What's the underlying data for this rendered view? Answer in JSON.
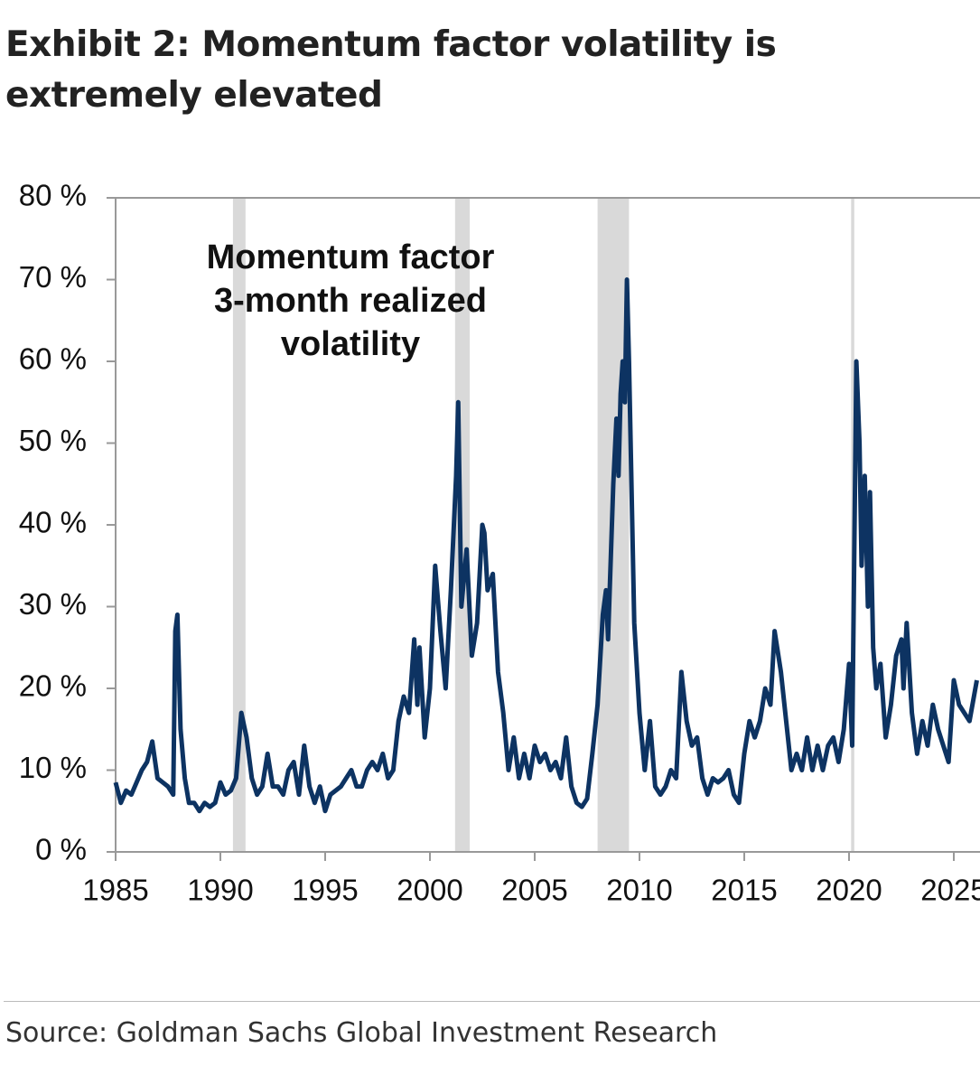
{
  "chart_data": {
    "type": "line",
    "title": "Exhibit 2: Momentum factor volatility is extremely elevated",
    "annotation": [
      "Momentum factor",
      "3-month realized",
      "volatility"
    ],
    "source": "Source: Goldman Sachs Global Investment Research",
    "x": [
      1985.0,
      1985.25,
      1985.5,
      1985.75,
      1986.0,
      1986.25,
      1986.5,
      1986.75,
      1987.0,
      1987.25,
      1987.5,
      1987.75,
      1987.85,
      1987.95,
      1988.1,
      1988.3,
      1988.5,
      1988.75,
      1989.0,
      1989.25,
      1989.5,
      1989.75,
      1990.0,
      1990.25,
      1990.5,
      1990.75,
      1991.0,
      1991.25,
      1991.5,
      1991.75,
      1992.0,
      1992.25,
      1992.5,
      1992.75,
      1993.0,
      1993.25,
      1993.5,
      1993.75,
      1994.0,
      1994.25,
      1994.5,
      1994.75,
      1995.0,
      1995.25,
      1995.5,
      1995.75,
      1996.0,
      1996.25,
      1996.5,
      1996.75,
      1997.0,
      1997.25,
      1997.5,
      1997.75,
      1998.0,
      1998.25,
      1998.5,
      1998.75,
      1999.0,
      1999.25,
      1999.4,
      1999.5,
      1999.75,
      2000.0,
      2000.25,
      2000.5,
      2000.75,
      2001.0,
      2001.25,
      2001.35,
      2001.5,
      2001.75,
      2002.0,
      2002.25,
      2002.5,
      2002.6,
      2002.75,
      2003.0,
      2003.25,
      2003.5,
      2003.75,
      2004.0,
      2004.25,
      2004.5,
      2004.75,
      2005.0,
      2005.25,
      2005.5,
      2005.75,
      2006.0,
      2006.25,
      2006.5,
      2006.75,
      2007.0,
      2007.25,
      2007.5,
      2007.75,
      2008.0,
      2008.25,
      2008.4,
      2008.5,
      2008.75,
      2008.9,
      2009.0,
      2009.1,
      2009.2,
      2009.3,
      2009.4,
      2009.5,
      2009.75,
      2010.0,
      2010.25,
      2010.5,
      2010.75,
      2011.0,
      2011.25,
      2011.5,
      2011.75,
      2012.0,
      2012.25,
      2012.5,
      2012.75,
      2013.0,
      2013.25,
      2013.5,
      2013.75,
      2014.0,
      2014.25,
      2014.5,
      2014.75,
      2015.0,
      2015.25,
      2015.5,
      2015.75,
      2016.0,
      2016.25,
      2016.45,
      2016.75,
      2017.0,
      2017.25,
      2017.5,
      2017.75,
      2018.0,
      2018.25,
      2018.5,
      2018.75,
      2019.0,
      2019.25,
      2019.5,
      2019.75,
      2020.0,
      2020.15,
      2020.35,
      2020.5,
      2020.6,
      2020.75,
      2020.9,
      2021.0,
      2021.15,
      2021.3,
      2021.5,
      2021.75,
      2022.0,
      2022.25,
      2022.5,
      2022.6,
      2022.75,
      2023.0,
      2023.25,
      2023.5,
      2023.75,
      2024.0,
      2024.25,
      2024.5,
      2024.75,
      2025.0,
      2025.25,
      2025.5,
      2025.75,
      2026.1
    ],
    "series": [
      {
        "color": "#0d3362",
        "values": [
          8.5,
          6,
          7.5,
          7,
          8.5,
          10,
          11,
          13.5,
          9,
          8.5,
          8,
          7,
          27,
          29,
          15,
          9,
          6,
          6,
          5,
          6,
          5.5,
          6,
          8.5,
          7,
          7.5,
          9,
          17,
          14,
          9,
          7,
          8,
          12,
          8,
          8,
          7,
          10,
          11,
          7,
          13,
          8,
          6,
          8,
          5,
          7,
          7.5,
          8,
          9,
          10,
          8,
          8,
          10,
          11,
          10,
          12,
          9,
          10,
          16,
          19,
          17,
          26,
          18,
          25,
          14,
          20,
          35,
          27,
          20,
          32,
          46,
          55,
          30,
          37,
          24,
          28,
          40,
          39,
          32,
          34,
          22,
          17,
          10,
          14,
          9,
          12,
          9,
          13,
          11,
          12,
          10,
          11,
          9,
          14,
          8,
          6,
          5.5,
          6.5,
          12,
          18,
          29,
          32,
          26,
          45,
          53,
          46,
          56,
          60,
          55,
          70,
          60,
          28,
          17,
          10,
          16,
          8,
          7,
          8,
          10,
          9,
          22,
          16,
          13,
          14,
          9,
          7,
          9,
          8.5,
          9,
          10,
          7,
          6,
          12,
          16,
          14,
          16,
          20,
          18,
          27,
          22,
          16,
          10,
          12,
          10,
          14,
          10,
          13,
          10,
          13,
          14,
          11,
          15,
          23,
          13,
          60,
          50,
          35,
          46,
          30,
          44,
          25,
          20,
          23,
          14,
          18,
          24,
          26,
          20,
          28,
          17,
          12,
          16,
          13,
          18,
          15,
          13,
          11,
          21,
          18,
          17,
          16,
          21
        ]
      }
    ],
    "xlim": [
      1985,
      2026.25
    ],
    "xticks": [
      1985,
      1990,
      1995,
      2000,
      2005,
      2010,
      2015,
      2020,
      2025
    ],
    "ylim": [
      0,
      80
    ],
    "yticks": [
      {
        "value": 0,
        "label": "0 %"
      },
      {
        "value": 10,
        "label": "10 %"
      },
      {
        "value": 20,
        "label": "20 %"
      },
      {
        "value": 30,
        "label": "30 %"
      },
      {
        "value": 40,
        "label": "40 %"
      },
      {
        "value": 50,
        "label": "50 %"
      },
      {
        "value": 60,
        "label": "60 %"
      },
      {
        "value": 70,
        "label": "70 %"
      },
      {
        "value": 80,
        "label": "80 %"
      }
    ],
    "shaded_periods": [
      [
        1990.6,
        1991.2
      ],
      [
        2001.2,
        2001.9
      ],
      [
        2008.0,
        2009.5
      ],
      [
        2020.1,
        2020.25
      ]
    ],
    "shade_color": "#d9d9d9"
  }
}
